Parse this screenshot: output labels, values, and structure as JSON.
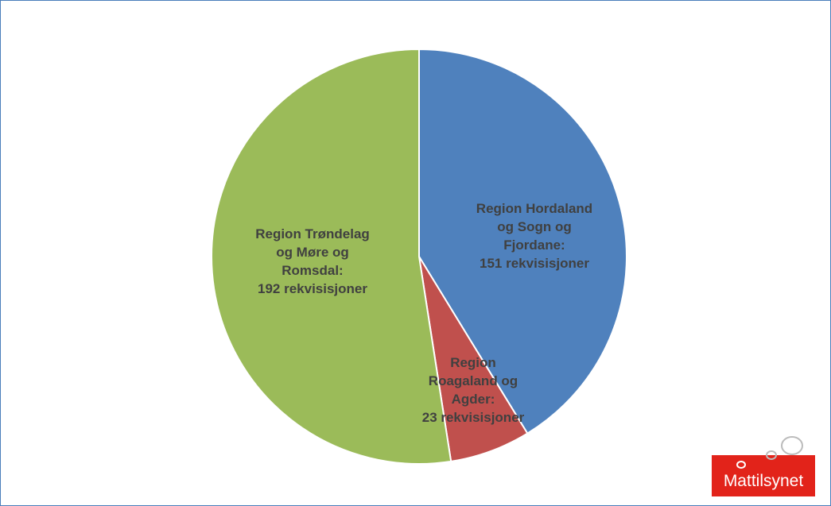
{
  "chart_data": {
    "type": "pie",
    "categories": [
      "Region Hordaland og Sogn og Fjordane:",
      "Region Roagaland og Agder:",
      "Region Trøndelag og Møre og Romsdal:"
    ],
    "values": [
      151,
      23,
      192
    ],
    "value_labels": [
      "151 rekvisisjoner",
      "23 rekvisisjoner",
      "192 rekvisisjoner"
    ],
    "colors": [
      "#4f81bd",
      "#c0504d",
      "#9bbb59"
    ]
  },
  "logo": "Mattilsynet"
}
